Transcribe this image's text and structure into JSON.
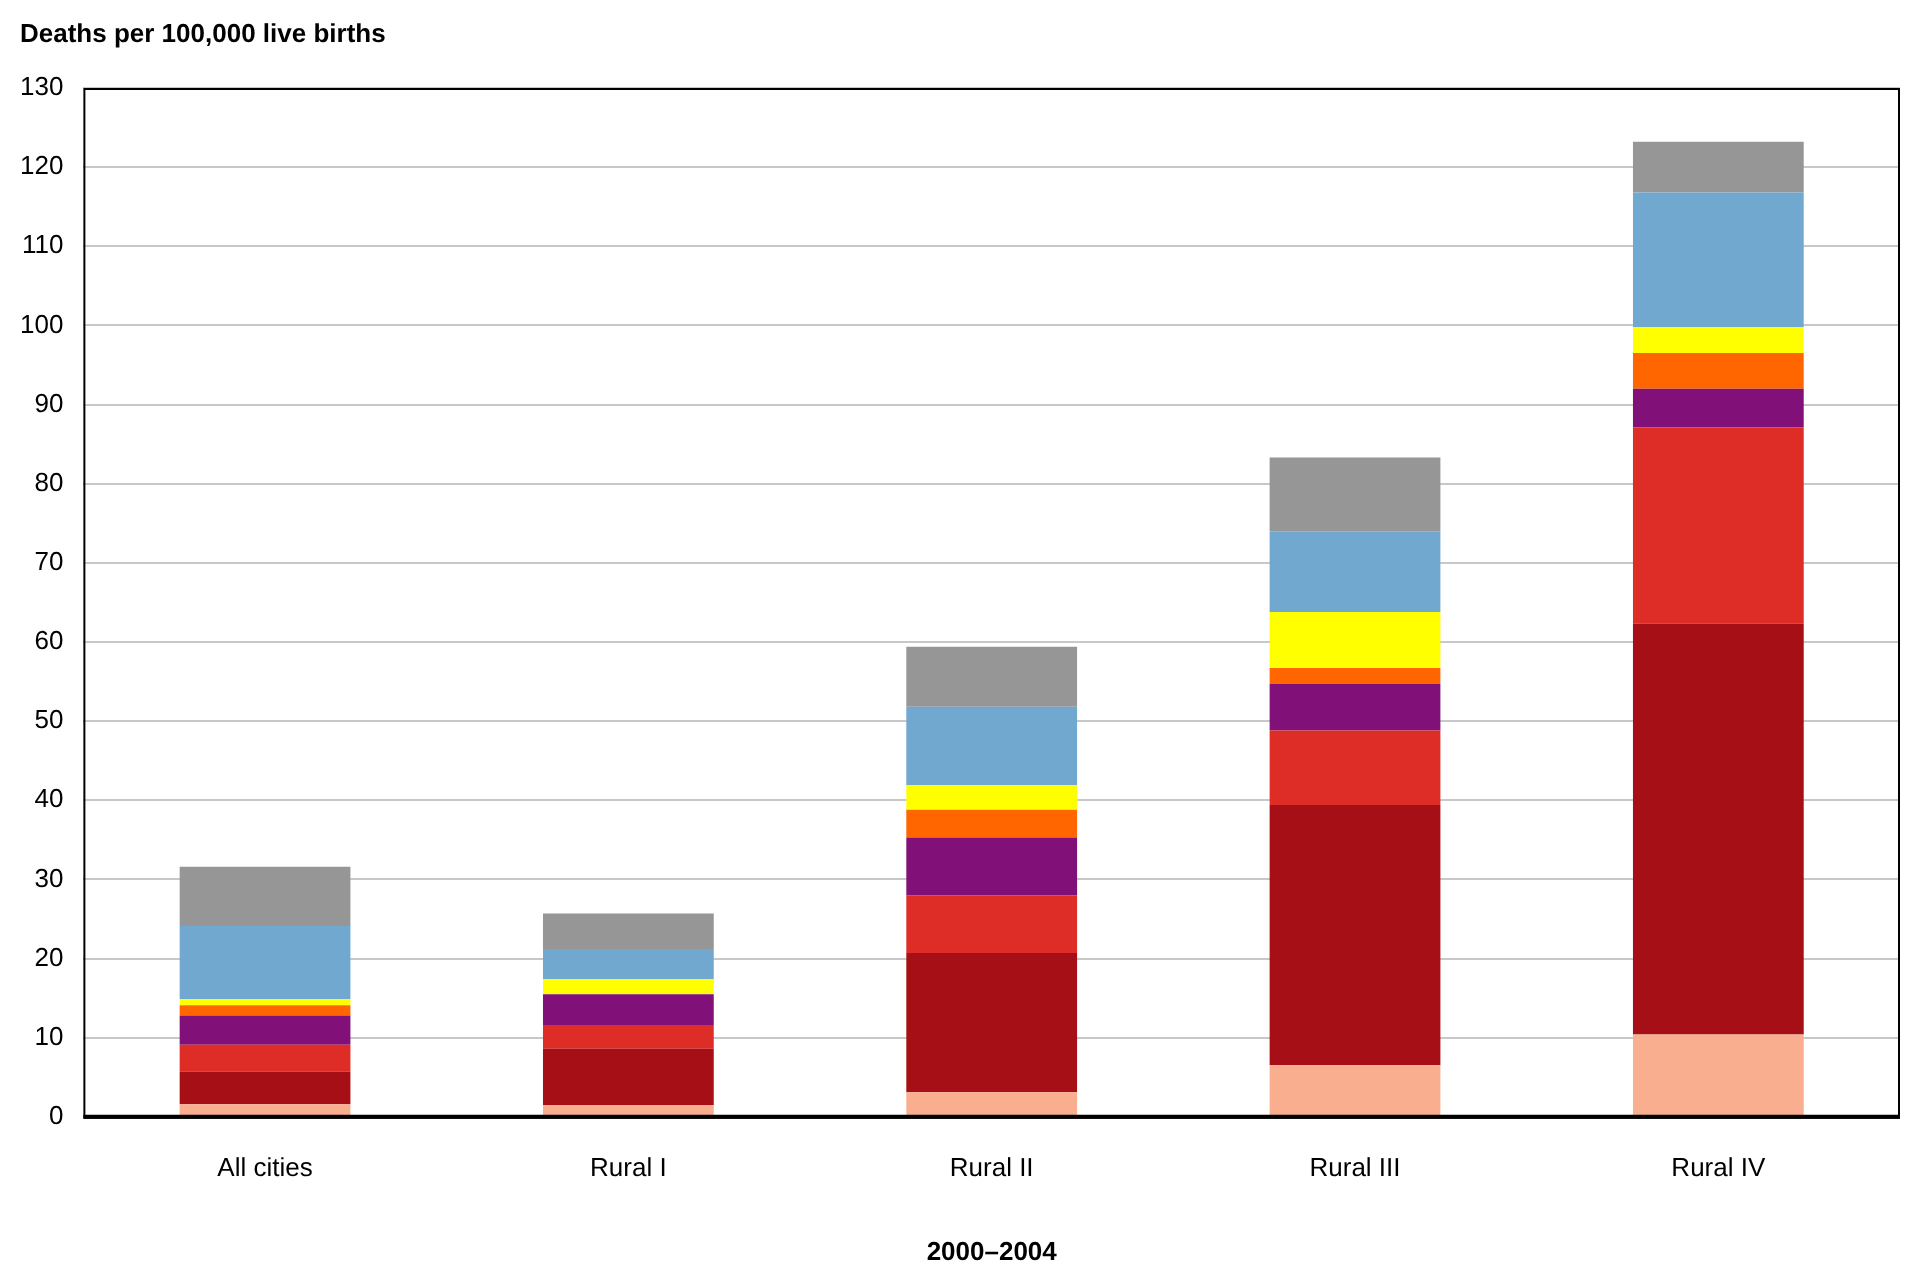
{
  "chart_data": {
    "type": "bar",
    "stacked": true,
    "ylabel": "Deaths per 100,000 live births",
    "xlabel": "2000–2004",
    "categories": [
      "All cities",
      "Rural I",
      "Rural II",
      "Rural III",
      "Rural IV"
    ],
    "series": [
      {
        "color": "#f9ae8f",
        "values": [
          1.6,
          1.5,
          3.1,
          6.5,
          10.4
        ]
      },
      {
        "color": "#a50f15",
        "values": [
          4.1,
          7.1,
          17.6,
          32.9,
          51.9
        ]
      },
      {
        "color": "#de2d26",
        "values": [
          3.4,
          3.0,
          7.3,
          9.4,
          24.8
        ]
      },
      {
        "color": "#811078",
        "values": [
          3.7,
          3.9,
          7.3,
          5.9,
          4.9
        ]
      },
      {
        "color": "#ff6600",
        "values": [
          1.3,
          0,
          3.5,
          2.0,
          4.5
        ]
      },
      {
        "color": "#ffff00",
        "values": [
          0.8,
          1.9,
          3.1,
          7.1,
          3.3
        ]
      },
      {
        "color": "#71a8cf",
        "values": [
          9.2,
          3.8,
          9.9,
          10.2,
          17.0
        ]
      },
      {
        "color": "#969696",
        "values": [
          7.5,
          4.5,
          7.6,
          9.3,
          6.4
        ]
      }
    ],
    "ylim": [
      0,
      130
    ],
    "yticks": [
      0,
      10,
      20,
      30,
      40,
      50,
      60,
      70,
      80,
      90,
      100,
      110,
      120,
      130
    ],
    "grid": "y",
    "legend": false
  }
}
